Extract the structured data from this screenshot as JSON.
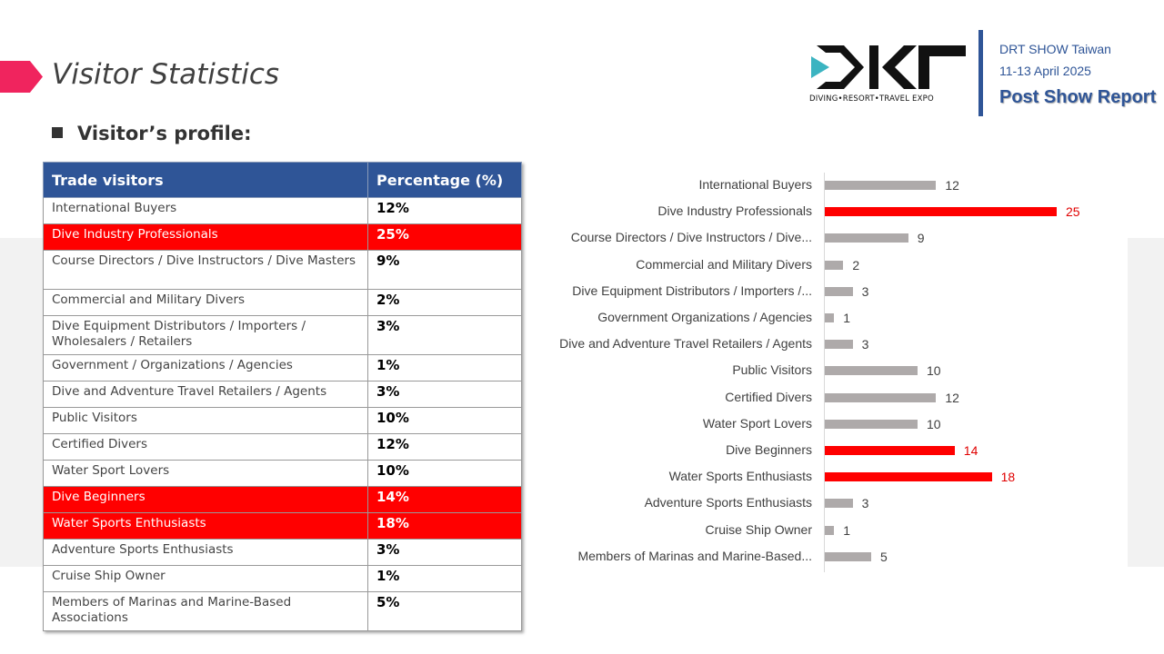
{
  "header": {
    "title": "Visitor Statistics",
    "subtitle": "Visitor’s profile:",
    "show_name": "DRT SHOW Taiwan",
    "dates": "11-13 April 2025",
    "report": "Post Show Report",
    "logo_text": "DRT",
    "logo_tagline": "DIVING•RESORT•TRAVEL EXPO"
  },
  "table": {
    "headers": [
      "Trade visitors",
      "Percentage (%)"
    ],
    "rows": [
      {
        "label": "International Buyers",
        "pct": "12%",
        "hl": false
      },
      {
        "label": "Dive Industry Professionals",
        "pct": "25%",
        "hl": true
      },
      {
        "label": "Course Directors / Dive Instructors / Dive Masters",
        "pct": "9%",
        "hl": false
      },
      {
        "label": "Commercial and Military Divers",
        "pct": "2%",
        "hl": false
      },
      {
        "label": "Dive Equipment Distributors / Importers / Wholesalers / Retailers",
        "pct": "3%",
        "hl": false
      },
      {
        "label": "Government / Organizations / Agencies",
        "pct": "1%",
        "hl": false
      },
      {
        "label": "Dive and Adventure Travel Retailers / Agents",
        "pct": "3%",
        "hl": false
      },
      {
        "label": "Public Visitors",
        "pct": "10%",
        "hl": false
      },
      {
        "label": "Certified Divers",
        "pct": "12%",
        "hl": false
      },
      {
        "label": "Water Sport Lovers",
        "pct": "10%",
        "hl": false
      },
      {
        "label": "Dive Beginners",
        "pct": "14%",
        "hl": true
      },
      {
        "label": "Water Sports Enthusiasts",
        "pct": "18%",
        "hl": true
      },
      {
        "label": "Adventure Sports Enthusiasts",
        "pct": "3%",
        "hl": false
      },
      {
        "label": "Cruise Ship Owner",
        "pct": "1%",
        "hl": false
      },
      {
        "label": "Members of Marinas and Marine-Based Associations",
        "pct": "5%",
        "hl": false
      }
    ]
  },
  "colors": {
    "gray": "#aeaaaa",
    "red": "#ff0000",
    "blue": "#2f5597"
  },
  "chart_data": {
    "type": "bar",
    "orientation": "horizontal",
    "categories": [
      "International Buyers",
      "Dive Industry Professionals",
      "Course Directors / Dive Instructors / Dive...",
      "Commercial and Military Divers",
      "Dive Equipment Distributors / Importers /...",
      "Government Organizations / Agencies",
      "Dive and Adventure Travel Retailers / Agents",
      "Public Visitors",
      "Certified Divers",
      "Water Sport Lovers",
      "Dive Beginners",
      "Water Sports Enthusiasts",
      "Adventure Sports Enthusiasts",
      "Cruise Ship Owner",
      "Members of Marinas and Marine-Based..."
    ],
    "values": [
      12,
      25,
      9,
      2,
      3,
      1,
      3,
      10,
      12,
      10,
      14,
      18,
      3,
      1,
      5
    ],
    "highlighted": [
      false,
      true,
      false,
      false,
      false,
      false,
      false,
      false,
      false,
      false,
      true,
      true,
      false,
      false,
      false
    ],
    "xlim": [
      0,
      25
    ],
    "grid": false
  }
}
